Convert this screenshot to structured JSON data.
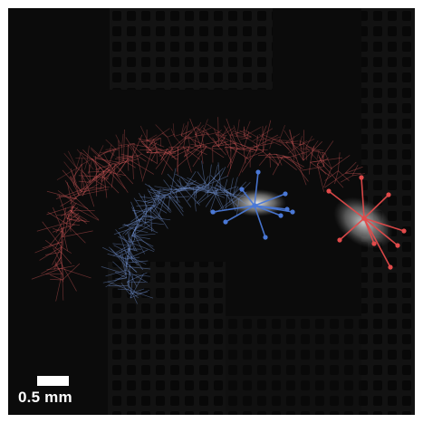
{
  "image": {
    "description_colors": {
      "background": "#0b0b0b",
      "mesh_hole": "#050505",
      "mesh_bar": "#1c1c1c",
      "specimen": "#d9d9d9",
      "trail_red": "#d95c5c",
      "trail_blue": "#6f8fd0",
      "marker_red": "#e24a4a",
      "marker_blue": "#4a78d6"
    }
  },
  "scale_bar": {
    "label": "0.5 mm"
  }
}
